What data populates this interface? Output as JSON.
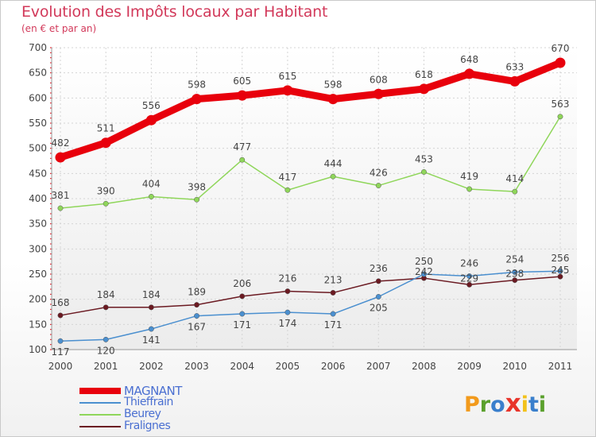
{
  "title": "Evolution des Impôts locaux par Habitant",
  "subtitle": "(en € et par an)",
  "logo": {
    "letters": [
      "P",
      "r",
      "o",
      "x",
      "i",
      "t",
      "i"
    ],
    "colors": [
      "#f29a1c",
      "#5aa02c",
      "#3a7fcc",
      "#e8352b",
      "#f2c21c",
      "#3a7fcc",
      "#5aa02c"
    ]
  },
  "chart_data": {
    "type": "line",
    "title": "Evolution des Impôts locaux par Habitant",
    "subtitle": "(en € et par an)",
    "categories": [
      "2000",
      "2001",
      "2002",
      "2003",
      "2004",
      "2005",
      "2006",
      "2007",
      "2008",
      "2009",
      "2010",
      "2011"
    ],
    "ylim": [
      100,
      700
    ],
    "yticks": [
      100,
      150,
      200,
      250,
      300,
      350,
      400,
      450,
      500,
      550,
      600,
      650,
      700
    ],
    "grid": true,
    "legend_position": "bottom-left",
    "series": [
      {
        "name": "MAGNANT",
        "color": "#e8000c",
        "values": [
          482,
          511,
          556,
          598,
          605,
          615,
          598,
          608,
          618,
          648,
          633,
          670
        ]
      },
      {
        "name": "Thieffrain",
        "color": "#4a8fcf",
        "values": [
          117,
          120,
          141,
          167,
          171,
          174,
          171,
          205,
          250,
          246,
          254,
          256
        ]
      },
      {
        "name": "Beurey",
        "color": "#8fd65a",
        "values": [
          381,
          390,
          404,
          398,
          477,
          417,
          444,
          426,
          453,
          419,
          414,
          563
        ]
      },
      {
        "name": "Fralignes",
        "color": "#6b1a22",
        "values": [
          168,
          184,
          184,
          189,
          206,
          216,
          213,
          236,
          242,
          229,
          238,
          245
        ]
      }
    ]
  }
}
